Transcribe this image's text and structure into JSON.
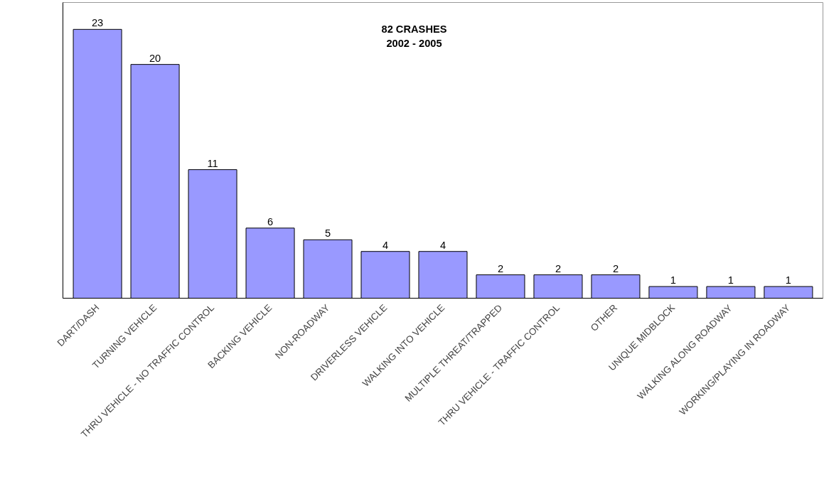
{
  "chart_data": {
    "type": "bar",
    "title": "82 CRASHES\n2002 - 2005",
    "categories": [
      "DART/DASH",
      "TURNING VEHICLE",
      "THRU VEHICLE - NO TRAFFIC CONTROL",
      "BACKING VEHICLE",
      "NON-ROADWAY",
      "DRIVERLESS VEHICLE",
      "WALKING INTO VEHICLE",
      "MULTIPLE THREAT/TRAPPED",
      "THRU VEHICLE - TRAFFIC CONTROL",
      "OTHER",
      "UNIQUE MIDBLOCK",
      "WALKING ALONG ROADWAY",
      "WORKING/PLAYING IN ROADWAY"
    ],
    "values": [
      23,
      20,
      11,
      6,
      5,
      4,
      4,
      2,
      2,
      2,
      1,
      1,
      1
    ],
    "color": "#9999ff",
    "data_labels": true,
    "grid": false
  }
}
